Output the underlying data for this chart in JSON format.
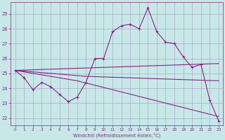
{
  "xlabel": "Windchill (Refroidissement éolien,°C)",
  "bg_color": "#c8e8e8",
  "grid_color": "#aaaacc",
  "line_color": "#882288",
  "x_values": [
    0,
    1,
    2,
    3,
    4,
    5,
    6,
    7,
    8,
    9,
    10,
    11,
    12,
    13,
    14,
    15,
    16,
    17,
    18,
    19,
    20,
    21,
    22,
    23
  ],
  "y_main": [
    25.2,
    24.7,
    23.9,
    24.4,
    24.1,
    23.6,
    23.1,
    23.4,
    24.4,
    26.0,
    26.0,
    27.8,
    28.2,
    28.3,
    28.0,
    29.4,
    27.8,
    27.1,
    27.0,
    26.1,
    25.4,
    25.6,
    23.2,
    21.8
  ],
  "y_line1": [
    25.2,
    25.15,
    25.1,
    25.05,
    25.0,
    24.95,
    24.9,
    24.85,
    24.8,
    24.78,
    24.76,
    24.74,
    24.72,
    24.7,
    24.68,
    24.66,
    24.64,
    24.62,
    24.6,
    24.58,
    24.56,
    24.54,
    24.52,
    24.5
  ],
  "y_line2": [
    25.2,
    25.22,
    25.24,
    25.26,
    25.28,
    25.3,
    25.32,
    25.34,
    25.36,
    25.38,
    25.4,
    25.42,
    25.44,
    25.46,
    25.48,
    25.5,
    25.52,
    25.54,
    25.56,
    25.58,
    25.6,
    25.62,
    25.64,
    25.66
  ],
  "y_line3": [
    25.2,
    25.1,
    25.0,
    24.9,
    24.8,
    24.7,
    24.6,
    24.5,
    24.35,
    24.2,
    24.05,
    23.9,
    23.75,
    23.6,
    23.45,
    23.3,
    23.15,
    23.0,
    22.85,
    22.7,
    22.55,
    22.4,
    22.25,
    22.1
  ],
  "ylim": [
    21.5,
    29.8
  ],
  "yticks": [
    22,
    23,
    24,
    25,
    26,
    27,
    28,
    29
  ],
  "xlim": [
    -0.5,
    23.5
  ],
  "xticks": [
    0,
    1,
    2,
    3,
    4,
    5,
    6,
    7,
    8,
    9,
    10,
    11,
    12,
    13,
    14,
    15,
    16,
    17,
    18,
    19,
    20,
    21,
    22,
    23
  ]
}
